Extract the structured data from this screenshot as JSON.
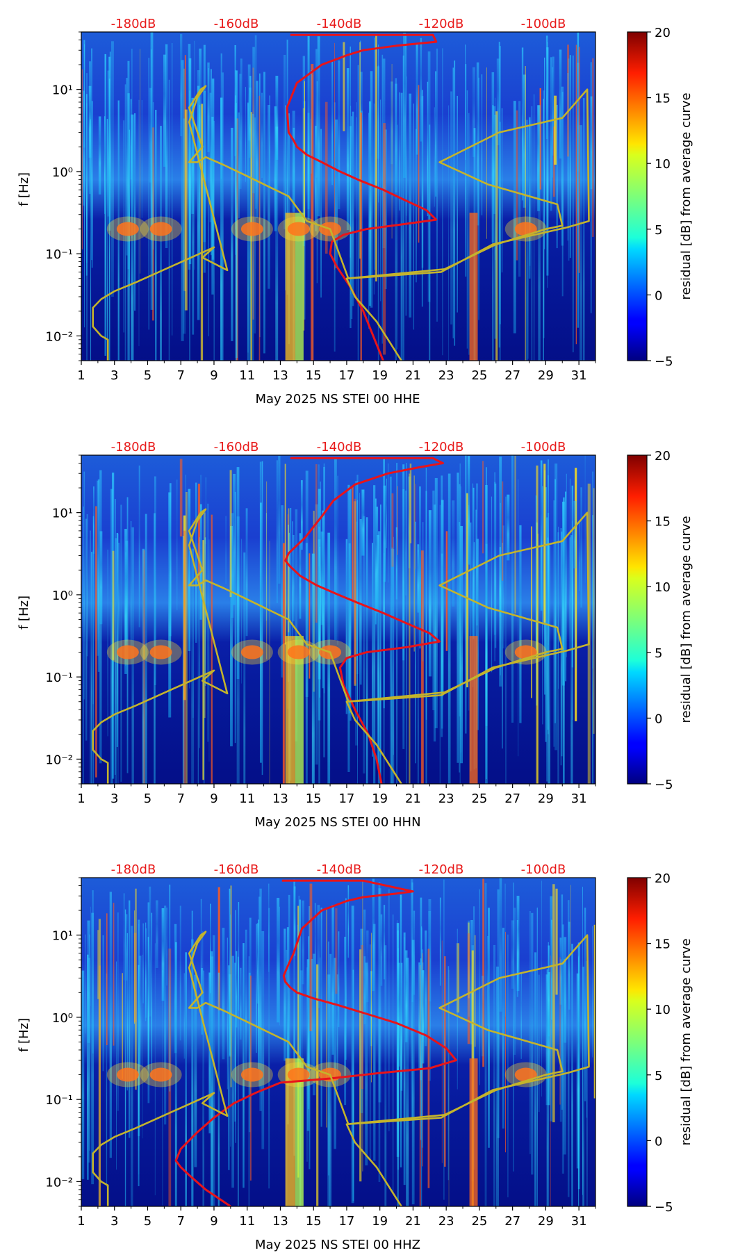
{
  "chart_data": [
    {
      "type": "heatmap",
      "title": "",
      "xlabel": "May 2025 NS STEI 00 HHE",
      "ylabel": "f [Hz]",
      "x_ticks": [
        "1",
        "3",
        "5",
        "7",
        "9",
        "11",
        "13",
        "15",
        "17",
        "19",
        "21",
        "23",
        "25",
        "27",
        "29",
        "31"
      ],
      "xlim": [
        1,
        32
      ],
      "y_ticks": [
        "10⁻²",
        "10⁻¹",
        "10⁰",
        "10¹"
      ],
      "ylim": [
        0.005,
        50
      ],
      "y_scale": "log",
      "top_labels": [
        "-180dB",
        "-160dB",
        "-140dB",
        "-120dB",
        "-100dB"
      ],
      "colorbar": {
        "label": "residual [dB] from average curve",
        "range": [
          -5,
          20
        ],
        "ticks": [
          "−5",
          "0",
          "5",
          "10",
          "15",
          "20"
        ]
      },
      "series": [
        {
          "name": "average curve",
          "color": "#e8141a",
          "x": [
            13.6,
            18,
            22.2,
            22.4,
            20,
            18,
            17,
            15.5,
            14,
            13.4,
            13.5,
            13.8,
            14,
            14.6,
            15.5,
            16.6,
            17.8,
            19.2,
            20.5,
            21.8,
            22.4,
            20.5,
            18.2,
            16.8,
            16.1,
            16.0,
            16.4,
            17.2,
            18.0,
            18.6,
            19.2
          ],
          "y": [
            46,
            46,
            46,
            38,
            34,
            30,
            26,
            20,
            12,
            6,
            3,
            2.4,
            2.0,
            1.6,
            1.3,
            1.0,
            0.78,
            0.6,
            0.45,
            0.34,
            0.26,
            0.23,
            0.2,
            0.17,
            0.14,
            0.1,
            0.07,
            0.04,
            0.02,
            0.01,
            0.005
          ]
        },
        {
          "name": "reference curve",
          "color": "#c4b42c",
          "x": [
            20.3,
            18.8,
            17.5,
            17.0,
            22.7,
            25.8,
            30.3,
            31.6,
            31.5,
            30.0,
            26.2,
            22.6,
            25.5,
            29.7,
            30.0,
            29.0,
            26.0,
            22.9,
            17.0,
            17.1,
            16.0,
            14.6,
            13.5,
            10.9,
            9.6,
            8.5,
            8.0,
            7.5,
            8.3,
            7.5,
            8.2,
            8.5,
            8.0,
            7.5,
            9.8,
            8.3,
            9.0,
            4.3,
            3.0,
            2.2,
            1.7,
            1.7,
            2.2,
            2.6,
            2.6
          ],
          "y": [
            0.005,
            0.015,
            0.03,
            0.05,
            0.06,
            0.13,
            0.21,
            0.25,
            10,
            4.5,
            3.0,
            1.3,
            0.7,
            0.4,
            0.22,
            0.2,
            0.13,
            0.065,
            0.05,
            0.05,
            0.2,
            0.25,
            0.5,
            0.9,
            1.2,
            1.5,
            1.3,
            1.3,
            2,
            6,
            10,
            11,
            8,
            4,
            0.063,
            0.09,
            0.12,
            0.045,
            0.035,
            0.028,
            0.022,
            0.013,
            0.01,
            0.009,
            0.005
          ]
        }
      ]
    },
    {
      "type": "heatmap",
      "title": "",
      "xlabel": "May 2025 NS STEI 00 HHN",
      "ylabel": "f [Hz]",
      "x_ticks": [
        "1",
        "3",
        "5",
        "7",
        "9",
        "11",
        "13",
        "15",
        "17",
        "19",
        "21",
        "23",
        "25",
        "27",
        "29",
        "31"
      ],
      "xlim": [
        1,
        32
      ],
      "y_ticks": [
        "10⁻²",
        "10⁻¹",
        "10⁰",
        "10¹"
      ],
      "ylim": [
        0.005,
        50
      ],
      "y_scale": "log",
      "top_labels": [
        "-180dB",
        "-160dB",
        "-140dB",
        "-120dB",
        "-100dB"
      ],
      "colorbar": {
        "label": "residual [dB] from average curve",
        "range": [
          -5,
          20
        ],
        "ticks": [
          "−5",
          "0",
          "5",
          "10",
          "15",
          "20"
        ]
      },
      "series": [
        {
          "name": "average curve",
          "color": "#e8141a",
          "x": [
            13.6,
            18,
            22.2,
            22.8,
            21.5,
            19.5,
            17.5,
            16.2,
            15.5,
            14.5,
            13.5,
            13.3,
            13.6,
            14.2,
            15.2,
            16.5,
            17.8,
            19.2,
            20.6,
            22.0,
            22.6,
            20.6,
            18.2,
            17.0,
            16.6,
            16.8,
            17.5,
            18.3,
            18.8,
            19.1
          ],
          "y": [
            46,
            46,
            46,
            40,
            36,
            30,
            22,
            14,
            9,
            5,
            3.2,
            2.6,
            2.2,
            1.7,
            1.3,
            1.0,
            0.78,
            0.6,
            0.45,
            0.34,
            0.27,
            0.23,
            0.2,
            0.17,
            0.13,
            0.08,
            0.04,
            0.02,
            0.01,
            0.005
          ]
        },
        {
          "name": "reference curve",
          "color": "#c4b42c",
          "x": [
            20.3,
            18.8,
            17.5,
            17.0,
            22.7,
            25.8,
            30.3,
            31.6,
            31.5,
            30.0,
            26.2,
            22.6,
            25.5,
            29.7,
            30.0,
            29.0,
            26.0,
            22.9,
            17.0,
            17.1,
            16.0,
            14.6,
            13.5,
            10.9,
            9.6,
            8.5,
            8.0,
            7.5,
            8.3,
            7.5,
            8.2,
            8.5,
            8.0,
            7.5,
            9.8,
            8.3,
            9.0,
            4.3,
            3.0,
            2.2,
            1.7,
            1.7,
            2.2,
            2.6,
            2.6
          ],
          "y": [
            0.005,
            0.015,
            0.03,
            0.05,
            0.06,
            0.13,
            0.21,
            0.25,
            10,
            4.5,
            3.0,
            1.3,
            0.7,
            0.4,
            0.22,
            0.2,
            0.13,
            0.065,
            0.05,
            0.05,
            0.2,
            0.25,
            0.5,
            0.9,
            1.2,
            1.5,
            1.3,
            1.3,
            2,
            6,
            10,
            11,
            8,
            4,
            0.063,
            0.09,
            0.12,
            0.045,
            0.035,
            0.028,
            0.022,
            0.013,
            0.01,
            0.009,
            0.005
          ]
        }
      ]
    },
    {
      "type": "heatmap",
      "title": "",
      "xlabel": "May 2025 NS STEI 00 HHZ",
      "ylabel": "f [Hz]",
      "x_ticks": [
        "1",
        "3",
        "5",
        "7",
        "9",
        "11",
        "13",
        "15",
        "17",
        "19",
        "21",
        "23",
        "25",
        "27",
        "29",
        "31"
      ],
      "xlim": [
        1,
        32
      ],
      "y_ticks": [
        "10⁻²",
        "10⁻¹",
        "10⁰",
        "10¹"
      ],
      "ylim": [
        0.005,
        50
      ],
      "y_scale": "log",
      "top_labels": [
        "-180dB",
        "-160dB",
        "-140dB",
        "-120dB",
        "-100dB"
      ],
      "colorbar": {
        "label": "residual [dB] from average curve",
        "range": [
          -5,
          20
        ],
        "ticks": [
          "−5",
          "0",
          "5",
          "10",
          "15",
          "20"
        ]
      },
      "series": [
        {
          "name": "average curve",
          "color": "#e8141a",
          "x": [
            13.1,
            18,
            21.0,
            20,
            18,
            17,
            15.5,
            14.3,
            13.8,
            13.4,
            13.2,
            13.3,
            13.6,
            14.0,
            15.0,
            16.5,
            18.2,
            20.0,
            21.8,
            23.0,
            23.6,
            22.0,
            19.0,
            16.0,
            13.0,
            11.5,
            10.2,
            9.0,
            8.0,
            7.0,
            6.7,
            7.0,
            7.5,
            8.5,
            10.0
          ],
          "y": [
            46,
            46,
            34,
            32,
            29,
            26,
            20,
            12,
            6,
            4,
            3.2,
            2.7,
            2.3,
            2.0,
            1.7,
            1.4,
            1.1,
            0.85,
            0.6,
            0.42,
            0.3,
            0.24,
            0.21,
            0.18,
            0.16,
            0.12,
            0.09,
            0.06,
            0.04,
            0.025,
            0.018,
            0.015,
            0.012,
            0.008,
            0.005
          ]
        },
        {
          "name": "reference curve",
          "color": "#c4b42c",
          "x": [
            20.3,
            18.8,
            17.5,
            17.0,
            22.7,
            25.8,
            30.3,
            31.6,
            31.5,
            30.0,
            26.2,
            22.6,
            25.5,
            29.7,
            30.0,
            29.0,
            26.0,
            22.9,
            17.0,
            17.1,
            16.0,
            14.6,
            13.5,
            10.9,
            9.6,
            8.5,
            8.0,
            7.5,
            8.3,
            7.5,
            8.2,
            8.5,
            8.0,
            7.5,
            9.8,
            8.3,
            9.0,
            4.3,
            3.0,
            2.2,
            1.7,
            1.7,
            2.2,
            2.6,
            2.6
          ],
          "y": [
            0.005,
            0.015,
            0.03,
            0.05,
            0.06,
            0.13,
            0.21,
            0.25,
            10,
            4.5,
            3.0,
            1.3,
            0.7,
            0.4,
            0.22,
            0.2,
            0.13,
            0.065,
            0.05,
            0.05,
            0.2,
            0.25,
            0.5,
            0.9,
            1.2,
            1.5,
            1.3,
            1.3,
            2,
            6,
            10,
            11,
            8,
            4,
            0.063,
            0.09,
            0.12,
            0.045,
            0.035,
            0.028,
            0.022,
            0.013,
            0.01,
            0.009,
            0.005
          ]
        }
      ]
    }
  ]
}
